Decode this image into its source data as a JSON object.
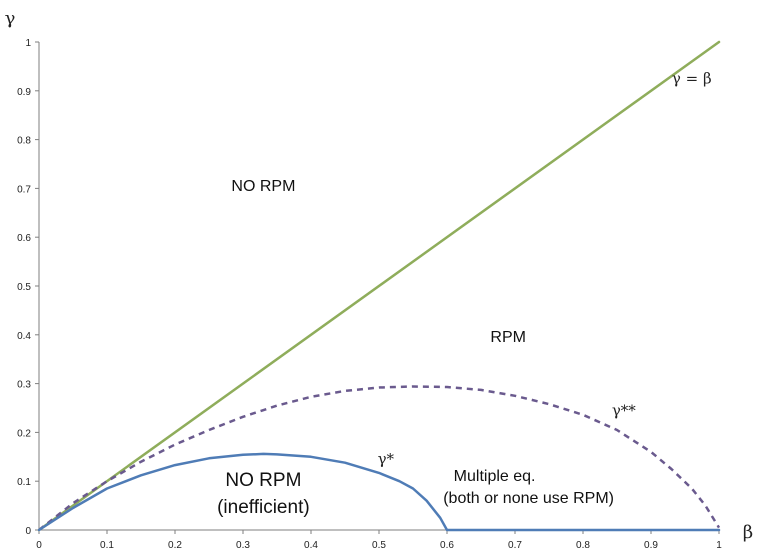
{
  "chart_data": {
    "type": "line",
    "xlabel": "β",
    "ylabel": "γ",
    "xlim": [
      0,
      1
    ],
    "ylim": [
      0,
      1
    ],
    "x_ticks": [
      "0",
      "0.1",
      "0.2",
      "0.3",
      "0.4",
      "0.5",
      "0.6",
      "0.7",
      "0.8",
      "0.9",
      "1"
    ],
    "y_ticks": [
      "0",
      "0.1",
      "0.2",
      "0.3",
      "0.4",
      "0.5",
      "0.6",
      "0.7",
      "0.8",
      "0.9",
      "1"
    ],
    "grid": false,
    "series": [
      {
        "name": "γ = β",
        "color": "#8fad5b",
        "style": "solid",
        "points": [
          [
            0,
            0
          ],
          [
            1,
            1
          ]
        ]
      },
      {
        "name": "γ**",
        "color": "#6a5a8e",
        "style": "dashed",
        "points": [
          [
            0,
            0
          ],
          [
            0.05,
            0.055
          ],
          [
            0.1,
            0.1
          ],
          [
            0.15,
            0.14
          ],
          [
            0.2,
            0.175
          ],
          [
            0.25,
            0.205
          ],
          [
            0.3,
            0.232
          ],
          [
            0.35,
            0.255
          ],
          [
            0.4,
            0.273
          ],
          [
            0.45,
            0.285
          ],
          [
            0.5,
            0.292
          ],
          [
            0.55,
            0.294
          ],
          [
            0.6,
            0.293
          ],
          [
            0.65,
            0.287
          ],
          [
            0.7,
            0.275
          ],
          [
            0.75,
            0.258
          ],
          [
            0.8,
            0.236
          ],
          [
            0.85,
            0.205
          ],
          [
            0.9,
            0.16
          ],
          [
            0.93,
            0.125
          ],
          [
            0.96,
            0.085
          ],
          [
            0.98,
            0.05
          ],
          [
            1,
            0.005
          ]
        ]
      },
      {
        "name": "γ*",
        "color": "#4f7cb6",
        "style": "solid",
        "points": [
          [
            0,
            0
          ],
          [
            0.05,
            0.045
          ],
          [
            0.1,
            0.085
          ],
          [
            0.15,
            0.112
          ],
          [
            0.2,
            0.133
          ],
          [
            0.25,
            0.147
          ],
          [
            0.3,
            0.154
          ],
          [
            0.33,
            0.156
          ],
          [
            0.35,
            0.155
          ],
          [
            0.4,
            0.15
          ],
          [
            0.45,
            0.138
          ],
          [
            0.5,
            0.117
          ],
          [
            0.53,
            0.1
          ],
          [
            0.55,
            0.085
          ],
          [
            0.57,
            0.06
          ],
          [
            0.59,
            0.025
          ],
          [
            0.6,
            0
          ],
          [
            1,
            0
          ]
        ]
      }
    ],
    "curve_labels": [
      {
        "text": "γ = β",
        "x": 0.96,
        "y": 0.915
      },
      {
        "text": "γ**",
        "x": 0.86,
        "y": 0.235
      },
      {
        "text": "γ*",
        "x": 0.51,
        "y": 0.135
      }
    ],
    "annotations": [
      {
        "text": "NO RPM",
        "x": 0.33,
        "y": 0.695,
        "size": "normal"
      },
      {
        "text": "RPM",
        "x": 0.69,
        "y": 0.385,
        "size": "normal"
      },
      {
        "text": "NO RPM",
        "x": 0.33,
        "y": 0.09,
        "size": "large"
      },
      {
        "text": "(inefficient)",
        "x": 0.33,
        "y": 0.035,
        "size": "large"
      },
      {
        "text": "Multiple eq.",
        "x": 0.67,
        "y": 0.1,
        "size": "normal"
      },
      {
        "text": "(both or none use RPM)",
        "x": 0.72,
        "y": 0.055,
        "size": "normal"
      }
    ]
  }
}
